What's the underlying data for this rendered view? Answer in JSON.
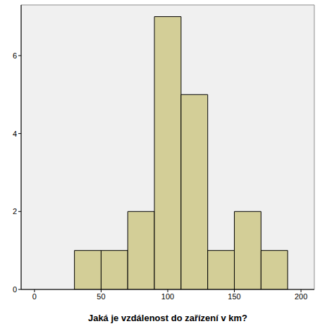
{
  "chart_data": {
    "type": "histogram",
    "xlabel": "Jaká je vzdálenost do zařízení v km?",
    "bins": [
      30,
      50,
      70,
      90,
      110,
      130,
      150,
      170,
      190
    ],
    "values": [
      1,
      1,
      2,
      7,
      5,
      1,
      2,
      1
    ],
    "color": "#d3ce97",
    "xlim": [
      -10,
      210
    ],
    "ylim": [
      0,
      7.3
    ],
    "xticks": [
      0,
      50,
      100,
      150,
      200
    ],
    "yticks": [
      0,
      2,
      4,
      6
    ],
    "grid": false
  }
}
